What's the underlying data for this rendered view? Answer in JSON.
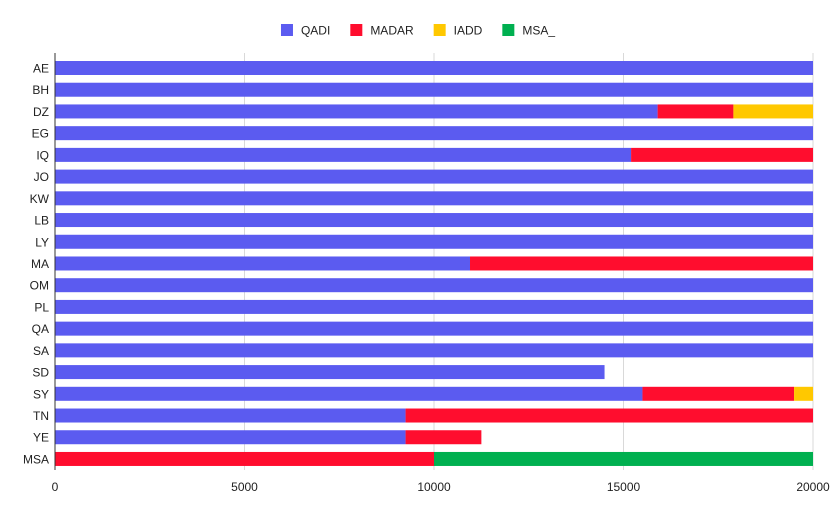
{
  "chart_data": {
    "type": "bar",
    "orientation": "horizontal",
    "stacked": true,
    "categories": [
      "AE",
      "BH",
      "DZ",
      "EG",
      "IQ",
      "JO",
      "KW",
      "LB",
      "LY",
      "MA",
      "OM",
      "PL",
      "QA",
      "SA",
      "SD",
      "SY",
      "TN",
      "YE",
      "MSA"
    ],
    "series": [
      {
        "name": "QADI",
        "color": "#5b5bf0",
        "values": [
          20000,
          20000,
          15900,
          20000,
          15200,
          20000,
          20000,
          20000,
          20000,
          10950,
          20000,
          20000,
          20000,
          20000,
          14500,
          15500,
          9250,
          9250,
          0
        ]
      },
      {
        "name": "MADAR",
        "color": "#ff0d2e",
        "values": [
          0,
          0,
          2000,
          0,
          4800,
          0,
          0,
          0,
          0,
          9050,
          0,
          0,
          0,
          0,
          0,
          4000,
          10750,
          2000,
          10000
        ]
      },
      {
        "name": "IADD",
        "color": "#ffc800",
        "values": [
          0,
          0,
          2100,
          0,
          0,
          0,
          0,
          0,
          0,
          0,
          0,
          0,
          0,
          0,
          0,
          500,
          0,
          0,
          0
        ]
      },
      {
        "name": "MSA_",
        "color": "#00b050",
        "values": [
          0,
          0,
          0,
          0,
          0,
          0,
          0,
          0,
          0,
          0,
          0,
          0,
          0,
          0,
          0,
          0,
          0,
          0,
          10000
        ]
      }
    ],
    "xlim": [
      0,
      20000
    ],
    "xticks": [
      0,
      5000,
      10000,
      15000,
      20000
    ],
    "grid": "vertical",
    "legend": "top-center",
    "title": "",
    "xlabel": "",
    "ylabel": ""
  }
}
